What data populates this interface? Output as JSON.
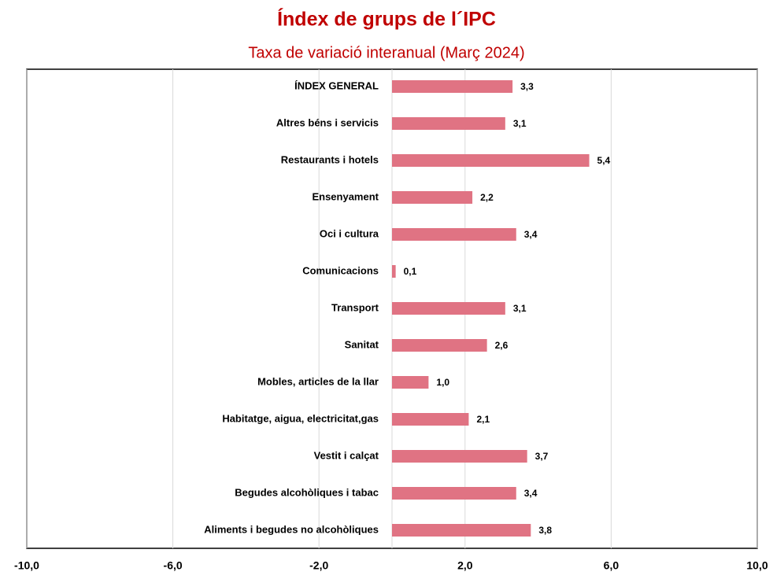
{
  "chart_data": {
    "type": "hbar",
    "title": "Índex de grups de l´IPC",
    "subtitle": "Taxa de variació interanual (Març 2024)",
    "categories": [
      "ÍNDEX GENERAL",
      "Altres béns i servicis",
      "Restaurants i hotels",
      "Ensenyament",
      "Oci i cultura",
      "Comunicacions",
      "Transport",
      "Sanitat",
      "Mobles, articles de la llar",
      "Habitatge, aigua, electricitat,gas",
      "Vestit i calçat",
      "Begudes alcohòliques i tabac",
      "Aliments i begudes no alcohòliques"
    ],
    "values": [
      3.3,
      3.1,
      5.4,
      2.2,
      3.4,
      0.1,
      3.1,
      2.6,
      1.0,
      2.1,
      3.7,
      3.4,
      3.8
    ],
    "value_labels": [
      "3,3",
      "3,1",
      "5,4",
      "2,2",
      "3,4",
      "0,1",
      "3,1",
      "2,6",
      "1,0",
      "2,1",
      "3,7",
      "3,4",
      "3,8"
    ],
    "color": "#e07383",
    "xlim": [
      -10,
      10
    ],
    "xticks": [
      {
        "value": -10,
        "label": "-10,0"
      },
      {
        "value": -6,
        "label": "-6,0"
      },
      {
        "value": -2,
        "label": "-2,0"
      },
      {
        "value": 2,
        "label": "2,0"
      },
      {
        "value": 6,
        "label": "6,0"
      },
      {
        "value": 10,
        "label": "10,0"
      }
    ],
    "grid": true
  }
}
